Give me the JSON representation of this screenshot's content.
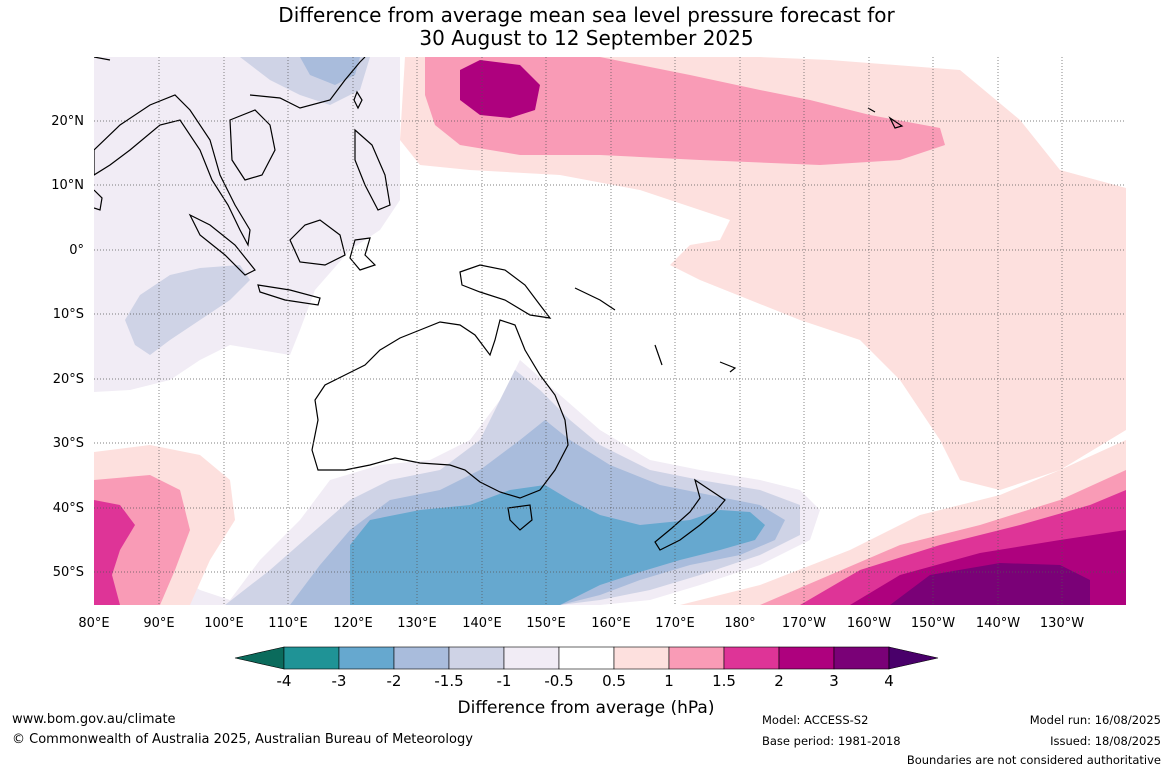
{
  "title": {
    "line1": "Difference from average mean sea level pressure forecast for",
    "line2": "30 August to 12 September 2025"
  },
  "map": {
    "lon_labels": [
      "80°E",
      "90°E",
      "100°E",
      "110°E",
      "120°E",
      "130°E",
      "140°E",
      "150°E",
      "160°E",
      "170°E",
      "180°",
      "170°W",
      "160°W",
      "150°W",
      "140°W",
      "130°W"
    ],
    "lat_labels": [
      "20°N",
      "10°N",
      "0°",
      "10°S",
      "20°S",
      "30°S",
      "40°S",
      "50°S"
    ]
  },
  "colorbar": {
    "title": "Difference from average (hPa)",
    "tick_labels": [
      "-4",
      "-3",
      "-2",
      "-1.5",
      "-1",
      "-0.5",
      "0.5",
      "1",
      "1.5",
      "2",
      "3",
      "4"
    ],
    "colors": [
      "#0b6b5c",
      "#1f9396",
      "#66a8cf",
      "#a9bcdc",
      "#cfd3e6",
      "#f1ecf5",
      "#ffffff",
      "#fde0de",
      "#f99bb6",
      "#de3497",
      "#ae017e",
      "#7a0177",
      "#49006a"
    ]
  },
  "footer": {
    "url": "www.bom.gov.au/climate",
    "copyright": "© Commonwealth of Australia 2025, Australian Bureau of Meteorology",
    "model": "Model: ACCESS-S2",
    "base_period": "Base period: 1981-2018",
    "model_run": "Model run: 16/08/2025",
    "issued": "Issued: 18/08/2025",
    "disclaimer": "Boundaries are not considered authoritative"
  }
}
